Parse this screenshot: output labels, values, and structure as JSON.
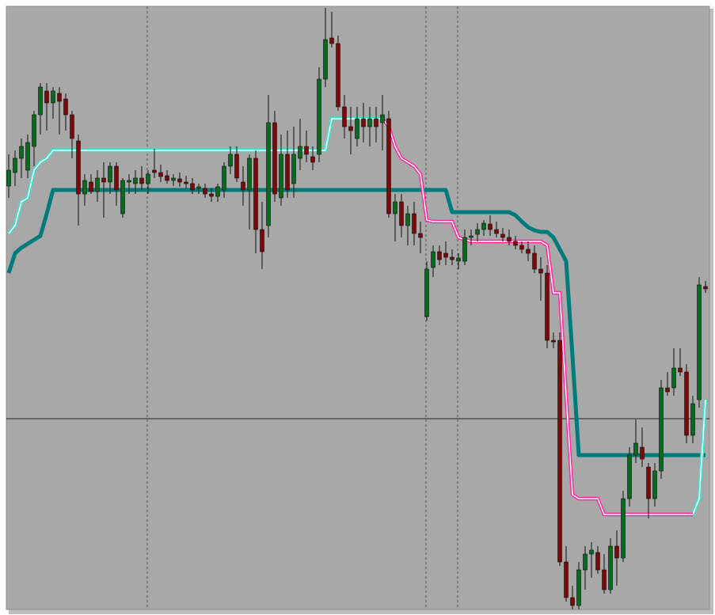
{
  "chart_data": {
    "type": "candlestick",
    "open": [
      542,
      559,
      577,
      562,
      592,
      632,
      662,
      647,
      659,
      652,
      632,
      599,
      532,
      547,
      535,
      552,
      547,
      567,
      507,
      547,
      545,
      552,
      545,
      562,
      559,
      555,
      549,
      551,
      547,
      545,
      539,
      539,
      532,
      529,
      537,
      567,
      582,
      547,
      537,
      577,
      487,
      492,
      622,
      527,
      582,
      545,
      577,
      592,
      579,
      582,
      677,
      729,
      722,
      642,
      617,
      602,
      627,
      617,
      627,
      622,
      627,
      507,
      522,
      492,
      507,
      482,
      377,
      439,
      459,
      457,
      452,
      447,
      447,
      477,
      481,
      487,
      494,
      487,
      481,
      477,
      472,
      467,
      462,
      457,
      437,
      432,
      347,
      347,
      67,
      22,
      12,
      57,
      77,
      79,
      57,
      32,
      87,
      72,
      147,
      202,
      212,
      187,
      147,
      182,
      287,
      287,
      312,
      307,
      227,
      272,
      415
    ],
    "high": [
      582,
      587,
      602,
      607,
      637,
      672,
      672,
      667,
      667,
      659,
      637,
      607,
      557,
      557,
      562,
      572,
      572,
      572,
      552,
      557,
      562,
      567,
      562,
      589,
      569,
      562,
      557,
      559,
      555,
      552,
      545,
      545,
      539,
      545,
      572,
      592,
      592,
      567,
      582,
      587,
      522,
      657,
      637,
      607,
      612,
      617,
      627,
      612,
      592,
      692,
      767,
      762,
      732,
      657,
      642,
      642,
      647,
      642,
      642,
      657,
      637,
      532,
      532,
      517,
      522,
      497,
      447,
      467,
      467,
      472,
      462,
      457,
      487,
      487,
      495,
      499,
      505,
      497,
      489,
      487,
      479,
      472,
      472,
      467,
      452,
      442,
      357,
      357,
      87,
      37,
      67,
      87,
      92,
      87,
      77,
      97,
      107,
      157,
      212,
      247,
      237,
      192,
      192,
      297,
      307,
      337,
      337,
      317,
      277,
      427,
      422
    ],
    "low": [
      527,
      542,
      552,
      552,
      567,
      607,
      612,
      627,
      607,
      612,
      577,
      492,
      517,
      532,
      522,
      502,
      532,
      517,
      502,
      532,
      532,
      537,
      532,
      552,
      547,
      545,
      542,
      541,
      539,
      532,
      532,
      527,
      522,
      522,
      527,
      557,
      547,
      517,
      487,
      457,
      437,
      477,
      522,
      517,
      527,
      527,
      562,
      572,
      562,
      572,
      667,
      717,
      637,
      602,
      582,
      592,
      597,
      592,
      597,
      587,
      502,
      472,
      477,
      467,
      467,
      457,
      372,
      427,
      442,
      442,
      442,
      437,
      442,
      467,
      472,
      479,
      479,
      477,
      472,
      467,
      462,
      457,
      447,
      432,
      397,
      337,
      337,
      62,
      17,
      7,
      7,
      32,
      47,
      52,
      27,
      27,
      37,
      67,
      137,
      192,
      187,
      122,
      137,
      172,
      277,
      277,
      302,
      217,
      217,
      262,
      407
    ],
    "close": [
      562,
      577,
      592,
      597,
      632,
      667,
      647,
      662,
      649,
      632,
      602,
      532,
      549,
      535,
      552,
      547,
      567,
      537,
      549,
      549,
      552,
      545,
      557,
      559,
      554,
      549,
      552,
      547,
      545,
      537,
      541,
      532,
      529,
      541,
      567,
      582,
      552,
      537,
      577,
      487,
      459,
      622,
      532,
      582,
      537,
      582,
      592,
      582,
      572,
      677,
      727,
      722,
      642,
      617,
      612,
      627,
      617,
      627,
      617,
      632,
      507,
      522,
      492,
      507,
      482,
      477,
      437,
      459,
      449,
      452,
      449,
      451,
      477,
      479,
      487,
      495,
      487,
      482,
      477,
      472,
      467,
      462,
      457,
      437,
      432,
      347,
      345,
      67,
      22,
      12,
      57,
      77,
      82,
      57,
      32,
      87,
      72,
      147,
      202,
      217,
      197,
      147,
      182,
      287,
      282,
      312,
      307,
      227,
      267,
      417,
      412
    ],
    "up_color": "#0a6b1e",
    "down_color": "#7a0a0a",
    "series": [
      {
        "color": "#007b7b",
        "values": [
          432,
          457,
          464,
          469,
          474,
          479,
          507,
          537,
          537,
          537,
          537,
          537,
          537,
          537,
          537,
          537,
          537,
          537,
          537,
          537,
          537,
          537,
          537,
          537,
          537,
          537,
          537,
          537,
          537,
          537,
          537,
          537,
          537,
          537,
          537,
          537,
          537,
          537,
          537,
          537,
          537,
          537,
          537,
          537,
          537,
          537,
          537,
          537,
          537,
          537,
          537,
          537,
          537,
          537,
          537,
          537,
          537,
          537,
          537,
          537,
          537,
          537,
          537,
          537,
          537,
          537,
          537,
          537,
          537,
          537,
          509,
          509,
          509,
          509,
          509,
          509,
          509,
          509,
          509,
          509,
          505,
          497,
          490,
          486,
          484,
          484,
          477,
          462,
          447,
          327,
          202,
          202,
          202,
          202,
          202,
          202,
          202,
          202,
          202,
          202,
          202,
          202,
          202,
          202,
          202,
          202,
          202,
          202,
          202,
          202,
          202
        ]
      },
      {
        "color": "#3fe0c8",
        "values": [
          482,
          492,
          522,
          527,
          562,
          572,
          577,
          587,
          587,
          587,
          587,
          587,
          587,
          587,
          587,
          587,
          587,
          587,
          587,
          587,
          587,
          587,
          587,
          587,
          587,
          587,
          587,
          587,
          587,
          587,
          587,
          587,
          587,
          587,
          587,
          587,
          587,
          587,
          587,
          587,
          587,
          587,
          587,
          587,
          587,
          587,
          587,
          587,
          587,
          587,
          587,
          627,
          627,
          627,
          627,
          627,
          627,
          627,
          627,
          627,
          null,
          null,
          null,
          null,
          null,
          null,
          null,
          null,
          null,
          null,
          null,
          null,
          null,
          null,
          null,
          null,
          null,
          null,
          null,
          null,
          null,
          null,
          null,
          null,
          null,
          null,
          null,
          null,
          null,
          null,
          null,
          null,
          null,
          null,
          null,
          null,
          null,
          null,
          null,
          null,
          null,
          null,
          null,
          null,
          null,
          null,
          null,
          null,
          127,
          147,
          272
        ]
      },
      {
        "color": "#ff2a9a",
        "values": [
          null,
          null,
          null,
          null,
          null,
          null,
          null,
          null,
          null,
          null,
          null,
          null,
          null,
          null,
          null,
          null,
          null,
          null,
          null,
          null,
          null,
          null,
          null,
          null,
          null,
          null,
          null,
          null,
          null,
          null,
          null,
          null,
          null,
          null,
          null,
          null,
          null,
          null,
          null,
          null,
          null,
          null,
          null,
          null,
          null,
          null,
          null,
          null,
          null,
          null,
          null,
          null,
          null,
          null,
          null,
          null,
          null,
          null,
          null,
          627,
          617,
          592,
          577,
          572,
          567,
          557,
          499,
          497,
          497,
          497,
          497,
          477,
          474,
          472,
          472,
          472,
          472,
          472,
          472,
          472,
          472,
          472,
          472,
          472,
          472,
          467,
          407,
          407,
          277,
          152,
          147,
          147,
          147,
          147,
          127,
          127,
          127,
          127,
          127,
          127,
          127,
          127,
          127,
          127,
          127,
          127,
          127,
          127,
          127,
          null,
          null
        ]
      }
    ],
    "ylim": [
      7,
      769
    ]
  }
}
